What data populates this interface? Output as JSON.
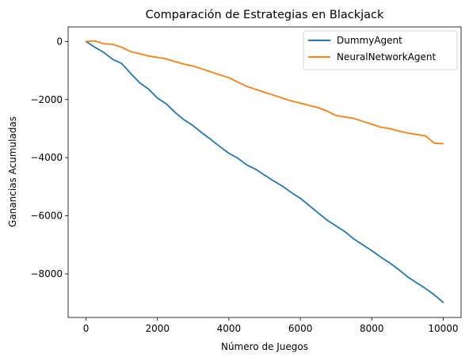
{
  "chart_data": {
    "type": "line",
    "title": "Comparación de Estrategias en Blackjack",
    "xlabel": "Número de Juegos",
    "ylabel": "Ganancias Acumuladas",
    "xlim": [
      -500,
      10500
    ],
    "ylim": [
      -9500,
      500
    ],
    "xticks": [
      0,
      2000,
      4000,
      6000,
      8000,
      10000
    ],
    "xtick_labels": [
      "0",
      "2000",
      "4000",
      "6000",
      "8000",
      "10000"
    ],
    "yticks": [
      0,
      -2000,
      -4000,
      -6000,
      -8000
    ],
    "ytick_labels": [
      "0",
      "−2000",
      "−4000",
      "−6000",
      "−8000"
    ],
    "grid": false,
    "legend_position": "top-right",
    "series": [
      {
        "name": "DummyAgent",
        "color": "#1f77b4",
        "x": [
          0,
          250,
          500,
          750,
          1000,
          1250,
          1500,
          1750,
          2000,
          2250,
          2500,
          2750,
          3000,
          3250,
          3500,
          3750,
          4000,
          4250,
          4500,
          4750,
          5000,
          5250,
          5500,
          5750,
          6000,
          6250,
          6500,
          6750,
          7000,
          7250,
          7500,
          7750,
          8000,
          8250,
          8500,
          8750,
          9000,
          9250,
          9500,
          9750,
          10000
        ],
        "y": [
          0,
          -200,
          -380,
          -620,
          -760,
          -1100,
          -1420,
          -1640,
          -1950,
          -2150,
          -2450,
          -2700,
          -2900,
          -3150,
          -3380,
          -3620,
          -3850,
          -4020,
          -4250,
          -4400,
          -4600,
          -4800,
          -4980,
          -5200,
          -5400,
          -5650,
          -5900,
          -6150,
          -6350,
          -6550,
          -6800,
          -7000,
          -7200,
          -7420,
          -7620,
          -7850,
          -8100,
          -8300,
          -8500,
          -8720,
          -8980
        ]
      },
      {
        "name": "NeuralNetworkAgent",
        "color": "#ff7f0e",
        "x": [
          0,
          250,
          500,
          750,
          1000,
          1250,
          1500,
          1750,
          2000,
          2250,
          2500,
          2750,
          3000,
          3250,
          3500,
          3750,
          4000,
          4250,
          4500,
          4750,
          5000,
          5250,
          5500,
          5750,
          6000,
          6250,
          6500,
          6750,
          7000,
          7250,
          7500,
          7750,
          8000,
          8250,
          8500,
          8750,
          9000,
          9250,
          9500,
          9750,
          10000
        ],
        "y": [
          0,
          20,
          -80,
          -100,
          -200,
          -350,
          -420,
          -500,
          -550,
          -600,
          -700,
          -780,
          -850,
          -950,
          -1050,
          -1150,
          -1250,
          -1400,
          -1550,
          -1650,
          -1750,
          -1850,
          -1950,
          -2050,
          -2120,
          -2200,
          -2280,
          -2400,
          -2550,
          -2600,
          -2650,
          -2750,
          -2850,
          -2950,
          -3000,
          -3080,
          -3150,
          -3200,
          -3250,
          -3500,
          -3520
        ]
      }
    ]
  }
}
